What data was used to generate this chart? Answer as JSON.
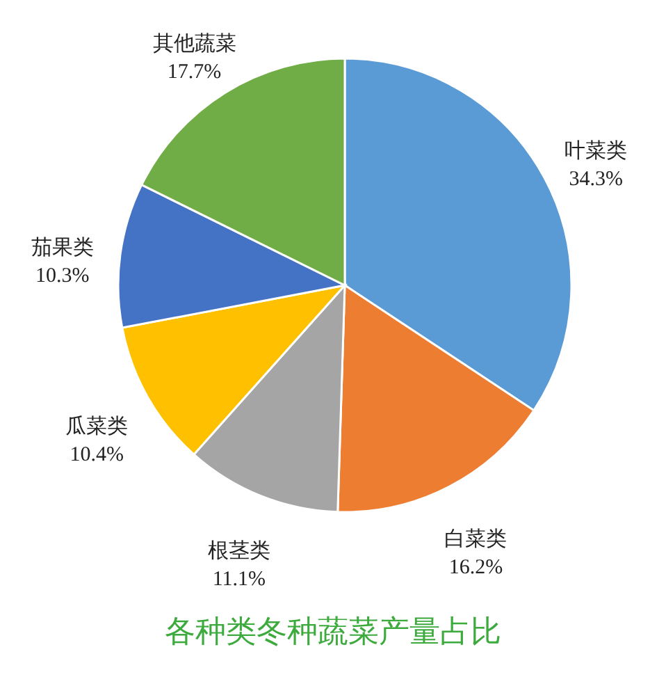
{
  "chart_data": {
    "type": "pie",
    "title": "各种类冬种蔬菜产量占比",
    "categories": [
      "叶菜类",
      "白菜类",
      "根茎类",
      "瓜菜类",
      "茄果类",
      "其他蔬菜"
    ],
    "values": [
      34.3,
      16.2,
      11.1,
      10.4,
      10.3,
      17.7
    ],
    "colors": [
      "#5b9bd5",
      "#ed7d31",
      "#a5a5a5",
      "#ffc000",
      "#4472c4",
      "#70ad47"
    ],
    "value_labels": [
      "34.3%",
      "16.2%",
      "11.1%",
      "10.4%",
      "10.3%",
      "17.7%"
    ]
  }
}
